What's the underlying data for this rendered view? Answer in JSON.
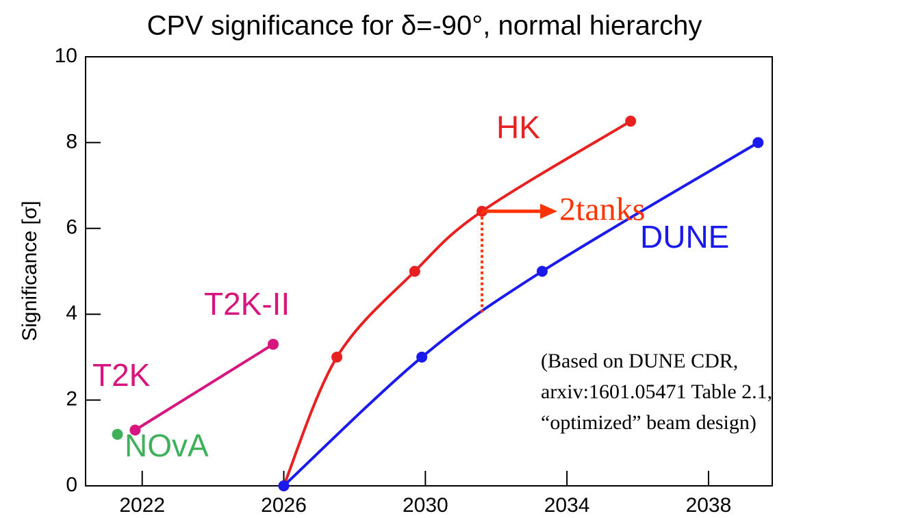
{
  "chart_data": {
    "type": "line",
    "title": "CPV significance for δ=-90°, normal hierarchy",
    "ylabel": "Significance [σ]",
    "xlim": [
      2020.4,
      2039.8
    ],
    "ylim": [
      0,
      10
    ],
    "xticks": [
      2022,
      2026,
      2030,
      2034,
      2038
    ],
    "yticks": [
      0,
      2,
      4,
      6,
      8,
      10
    ],
    "series": [
      {
        "name": "NOvA",
        "color": "#3fb05a",
        "x": [
          2021.3
        ],
        "values": [
          1.2
        ]
      },
      {
        "name": "T2K",
        "color": "#d6157e",
        "x": [
          2021.8,
          2025.7
        ],
        "values": [
          1.3,
          3.3
        ]
      },
      {
        "name": "HK",
        "color": "#e8201f",
        "x": [
          2026,
          2027.5,
          2029.7,
          2031.6,
          2035.8
        ],
        "values": [
          0,
          3.0,
          5.0,
          6.4,
          8.5
        ]
      },
      {
        "name": "DUNE",
        "color": "#1a1aee",
        "x": [
          2026,
          2029.9,
          2033.3,
          2039.4
        ],
        "values": [
          0,
          3.0,
          5.0,
          8.0
        ]
      }
    ],
    "annotations": [
      {
        "text": "T2K-II",
        "color": "#d6157e"
      },
      {
        "text": "2tanks",
        "color": "#ff3300",
        "x": 2031.6,
        "y": 6.4,
        "y_end": 4
      }
    ],
    "note": [
      "(Based on DUNE CDR,",
      "arxiv:1601.05471 Table 2.1,",
      "“optimized” beam design)"
    ]
  }
}
